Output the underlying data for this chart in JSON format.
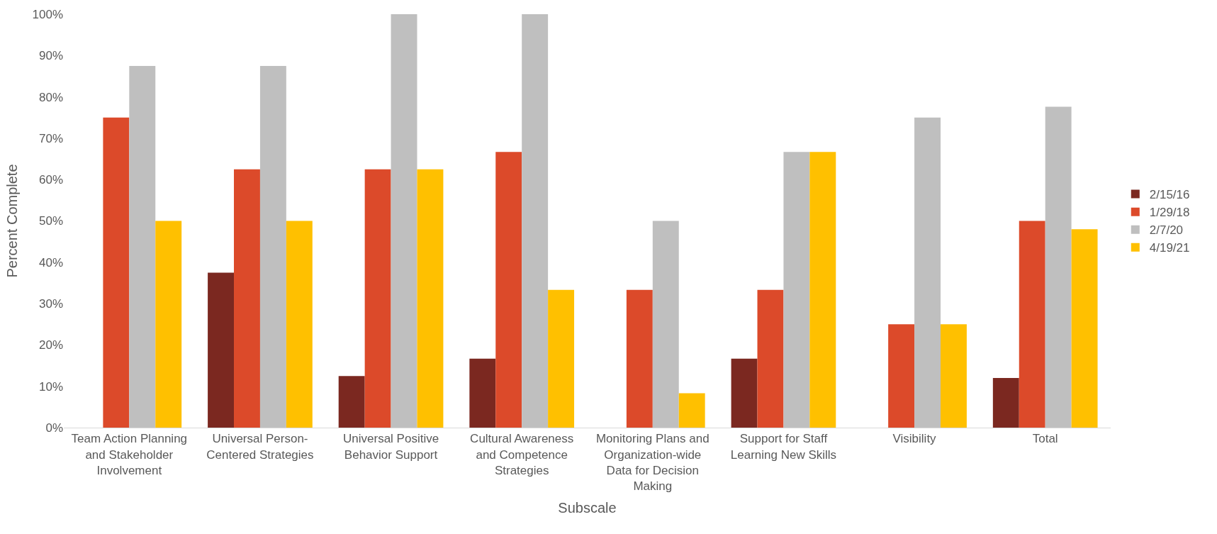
{
  "chart_data": {
    "type": "bar",
    "xlabel": "Subscale",
    "ylabel": "Percent Complete",
    "categories": [
      "Team Action Planning and Stakeholder Involvement",
      "Universal Person-Centered Strategies",
      "Universal Positive Behavior Support",
      "Cultural Awareness and Competence Strategies",
      "Monitoring Plans and Organization-wide Data for Decision Making",
      "Support for Staff Learning New Skills",
      "Visibility",
      "Total"
    ],
    "series": [
      {
        "name": "2/15/16",
        "color": "#7b2820",
        "values": [
          0,
          37.5,
          12.5,
          16.7,
          0,
          16.7,
          0,
          12
        ]
      },
      {
        "name": "1/29/18",
        "color": "#dc4a2a",
        "values": [
          75,
          62.5,
          62.5,
          66.7,
          33.3,
          33.3,
          25,
          50
        ]
      },
      {
        "name": "2/7/20",
        "color": "#bfbfbf",
        "values": [
          87.5,
          87.5,
          100,
          100,
          50,
          66.7,
          75,
          77.6
        ]
      },
      {
        "name": "4/19/21",
        "color": "#ffc000",
        "values": [
          50,
          50,
          62.5,
          33.3,
          8.3,
          66.7,
          25,
          48
        ]
      }
    ],
    "ylim": [
      0,
      100
    ],
    "yticks": [
      {
        "value": 0,
        "label": "0%"
      },
      {
        "value": 10,
        "label": "10%"
      },
      {
        "value": 20,
        "label": "20%"
      },
      {
        "value": 30,
        "label": "30%"
      },
      {
        "value": 40,
        "label": "40%"
      },
      {
        "value": 50,
        "label": "50%"
      },
      {
        "value": 60,
        "label": "60%"
      },
      {
        "value": 70,
        "label": "70%"
      },
      {
        "value": 80,
        "label": "80%"
      },
      {
        "value": 90,
        "label": "90%"
      },
      {
        "value": 100,
        "label": "100%"
      }
    ],
    "grid": false,
    "legend": "right"
  }
}
